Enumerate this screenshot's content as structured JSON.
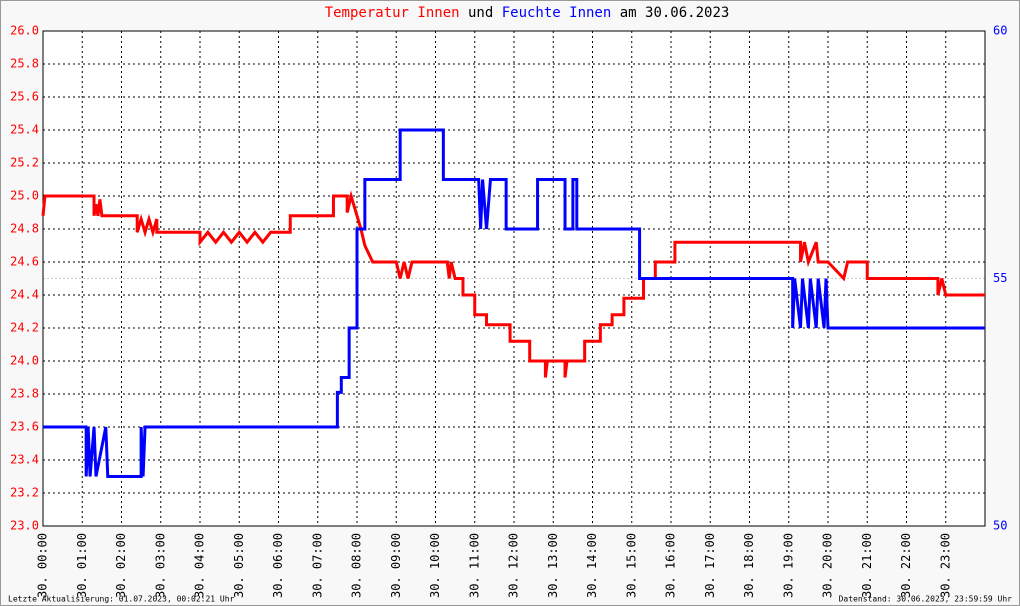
{
  "chart_data": {
    "type": "line",
    "title_parts": [
      "und",
      "am 30.06.2023"
    ],
    "xlim": [
      0,
      24
    ],
    "xticks": [
      {
        "value": 0,
        "label": "30. 00:00"
      },
      {
        "value": 1,
        "label": "30. 01:00"
      },
      {
        "value": 2,
        "label": "30. 02:00"
      },
      {
        "value": 3,
        "label": "30. 03:00"
      },
      {
        "value": 4,
        "label": "30. 04:00"
      },
      {
        "value": 5,
        "label": "30. 05:00"
      },
      {
        "value": 6,
        "label": "30. 06:00"
      },
      {
        "value": 7,
        "label": "30. 07:00"
      },
      {
        "value": 8,
        "label": "30. 08:00"
      },
      {
        "value": 9,
        "label": "30. 09:00"
      },
      {
        "value": 10,
        "label": "30. 10:00"
      },
      {
        "value": 11,
        "label": "30. 11:00"
      },
      {
        "value": 12,
        "label": "30. 12:00"
      },
      {
        "value": 13,
        "label": "30. 13:00"
      },
      {
        "value": 14,
        "label": "30. 14:00"
      },
      {
        "value": 15,
        "label": "30. 15:00"
      },
      {
        "value": 16,
        "label": "30. 16:00"
      },
      {
        "value": 17,
        "label": "30. 17:00"
      },
      {
        "value": 18,
        "label": "30. 18:00"
      },
      {
        "value": 19,
        "label": "30. 19:00"
      },
      {
        "value": 20,
        "label": "30. 20:00"
      },
      {
        "value": 21,
        "label": "30. 21:00"
      },
      {
        "value": 22,
        "label": "30. 22:00"
      },
      {
        "value": 23,
        "label": "30. 23:00"
      }
    ],
    "ylim": [
      23.0,
      26.0
    ],
    "yticks": [
      {
        "value": 23.0,
        "label": "23.0"
      },
      23.2,
      23.4,
      23.6,
      23.8,
      {
        "value": 24.0,
        "label": "24.0"
      },
      24.2,
      24.4,
      24.6,
      24.8,
      {
        "value": 25.0,
        "label": "25.0"
      },
      25.2,
      25.4,
      25.6,
      25.8,
      {
        "value": 26.0,
        "label": "26.0"
      }
    ],
    "y2lim": [
      50,
      60
    ],
    "y2ticks": [
      50,
      55,
      60
    ],
    "grid": true,
    "series": [
      {
        "name": "Temperatur Innen",
        "color": "#ff0000",
        "axis": "y",
        "x": [
          0,
          0.05,
          1.3,
          1.3,
          1.35,
          1.4,
          1.45,
          1.5,
          2.4,
          2.4,
          2.5,
          2.6,
          2.7,
          2.8,
          2.9,
          2.9,
          4.0,
          4.0,
          4.2,
          4.4,
          4.6,
          4.8,
          5.0,
          5.2,
          5.4,
          5.6,
          5.8,
          6.3,
          6.3,
          7.4,
          7.4,
          7.75,
          7.75,
          7.85,
          8.0,
          8.1,
          8.2,
          8.4,
          9.0,
          9.1,
          9.2,
          9.3,
          9.4,
          10.3,
          10.35,
          10.4,
          10.5,
          10.7,
          10.7,
          11.0,
          11.0,
          11.3,
          11.3,
          11.9,
          11.9,
          12.4,
          12.4,
          12.8,
          12.8,
          12.85,
          13.3,
          13.3,
          13.35,
          13.8,
          13.8,
          14.2,
          14.2,
          14.5,
          14.5,
          14.8,
          14.8,
          15.3,
          15.3,
          15.6,
          15.6,
          16.1,
          16.1,
          19.3,
          19.3,
          19.4,
          19.5,
          19.7,
          19.75,
          20.0,
          20.4,
          20.5,
          21.0,
          21.0,
          22.8,
          22.8,
          22.9,
          23.0,
          24
        ],
        "values": [
          24.88,
          25.0,
          25.0,
          24.88,
          24.95,
          24.88,
          24.98,
          24.88,
          24.88,
          24.78,
          24.86,
          24.78,
          24.86,
          24.78,
          24.86,
          24.78,
          24.78,
          24.72,
          24.78,
          24.72,
          24.78,
          24.72,
          24.78,
          24.72,
          24.78,
          24.72,
          24.78,
          24.78,
          24.88,
          24.88,
          25.0,
          25.0,
          24.9,
          25.0,
          24.88,
          24.8,
          24.7,
          24.6,
          24.6,
          24.5,
          24.6,
          24.5,
          24.6,
          24.6,
          24.5,
          24.6,
          24.5,
          24.5,
          24.4,
          24.4,
          24.28,
          24.28,
          24.22,
          24.22,
          24.12,
          24.12,
          24.0,
          24.0,
          23.9,
          24.0,
          24.0,
          23.9,
          24.0,
          24.0,
          24.12,
          24.12,
          24.22,
          24.22,
          24.28,
          24.28,
          24.38,
          24.38,
          24.5,
          24.5,
          24.6,
          24.6,
          24.72,
          24.72,
          24.6,
          24.72,
          24.6,
          24.72,
          24.6,
          24.6,
          24.5,
          24.6,
          24.6,
          24.5,
          24.5,
          24.4,
          24.5,
          24.4,
          24.4
        ]
      },
      {
        "name": "Feuchte Innen",
        "color": "#0000ff",
        "axis": "y2",
        "x": [
          0,
          1.1,
          1.1,
          1.15,
          1.2,
          1.3,
          1.35,
          1.6,
          1.65,
          2.5,
          2.5,
          2.55,
          2.6,
          7.5,
          7.5,
          7.6,
          7.6,
          7.8,
          7.8,
          8.0,
          8.0,
          8.2,
          8.2,
          9.1,
          9.1,
          10.2,
          10.2,
          11.1,
          11.15,
          11.2,
          11.3,
          11.4,
          11.8,
          11.8,
          12.6,
          12.6,
          13.3,
          13.3,
          13.5,
          13.5,
          13.6,
          13.6,
          15.2,
          15.2,
          19.1,
          19.1,
          19.15,
          19.3,
          19.35,
          19.5,
          19.55,
          19.7,
          19.75,
          19.9,
          19.95,
          20.0,
          24
        ],
        "values": [
          52,
          52,
          51,
          52,
          51,
          52,
          51,
          52,
          51,
          51,
          52,
          51,
          52,
          52,
          52.7,
          52.7,
          53,
          53,
          54,
          54,
          56,
          56,
          57,
          57,
          58,
          58,
          57,
          57,
          56,
          57,
          56,
          57,
          57,
          56,
          56,
          57,
          57,
          56,
          56,
          57,
          57,
          56,
          56,
          55,
          55,
          54,
          55,
          54,
          55,
          54,
          55,
          54,
          55,
          54,
          55,
          54,
          54
        ]
      }
    ],
    "footer_left": "Letzte Aktualisierung: 01.07.2023, 00:02:21 Uhr",
    "footer_right": "Datenstand: 30.06.2023, 23:59:59 Uhr"
  }
}
